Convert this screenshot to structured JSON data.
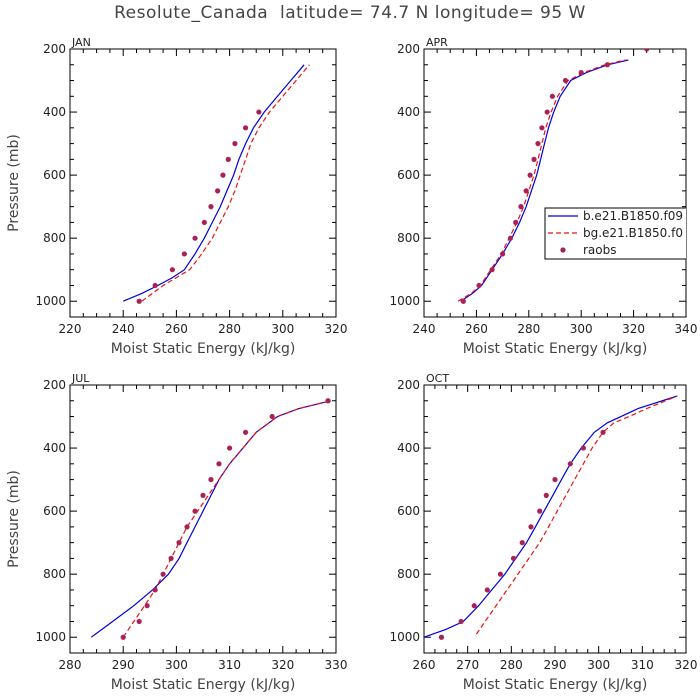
{
  "title": "Resolute_Canada  latitude= 74.7 N longitude= 95 W",
  "legend": {
    "entries": [
      {
        "label": "b.e21.B1850.f09",
        "color": "#0000dd",
        "style": "solid"
      },
      {
        "label": "bg.e21.B1850.f0",
        "color": "#ee1111",
        "style": "dashed"
      },
      {
        "label": "raobs",
        "color": "#aa2255",
        "style": "dots"
      }
    ]
  },
  "colors": {
    "model_b": "#0000dd",
    "model_bg": "#ee1111",
    "raobs": "#aa2255"
  },
  "chart_data": [
    {
      "type": "line",
      "panel_label": "JAN",
      "xlabel": "Moist Static Energy (kJ/kg)",
      "ylabel": "Pressure (mb)",
      "xlim": [
        220,
        320
      ],
      "ylim": [
        1000,
        200
      ],
      "xticks": [
        220,
        240,
        260,
        280,
        300,
        320
      ],
      "yticks": [
        200,
        400,
        600,
        800,
        1000
      ],
      "series": [
        {
          "key": "b",
          "x": [
            240.0,
            247.0,
            253.0,
            258.5,
            263.0,
            267.0,
            270.5,
            273.5,
            276.5,
            279.0,
            281.5,
            283.5,
            286.0,
            289.0,
            293.0,
            298.0,
            303.0,
            308.0
          ],
          "y": [
            1000,
            975,
            950,
            925,
            900,
            850,
            800,
            750,
            700,
            650,
            600,
            550,
            500,
            450,
            400,
            350,
            300,
            250
          ]
        },
        {
          "key": "bg",
          "x": [
            247.0,
            251.0,
            255.0,
            260.0,
            265.0,
            269.5,
            273.5,
            276.5,
            279.5,
            282.0,
            284.0,
            286.0,
            288.0,
            291.0,
            295.0,
            300.0,
            305.0,
            310.0
          ],
          "y": [
            1000,
            975,
            950,
            925,
            900,
            850,
            800,
            750,
            700,
            650,
            600,
            550,
            500,
            450,
            400,
            350,
            300,
            250
          ]
        },
        {
          "key": "raobs",
          "x": [
            246.0,
            252.0,
            258.5,
            263.0,
            267.0,
            270.5,
            273.0,
            275.5,
            277.5,
            279.5,
            282.0,
            286.0,
            291.0
          ],
          "y": [
            1000,
            950,
            900,
            850,
            800,
            750,
            700,
            650,
            600,
            550,
            500,
            450,
            400
          ]
        }
      ]
    },
    {
      "type": "line",
      "panel_label": "APR",
      "xlabel": "Moist Static Energy (kJ/kg)",
      "ylabel": "",
      "xlim": [
        240,
        340
      ],
      "ylim": [
        1000,
        200
      ],
      "xticks": [
        240,
        260,
        280,
        300,
        320,
        340
      ],
      "yticks": [
        200,
        400,
        600,
        800,
        1000
      ],
      "series": [
        {
          "key": "b",
          "x": [
            254.0,
            258.5,
            262.0,
            266.0,
            270.0,
            273.5,
            276.5,
            279.0,
            281.0,
            283.0,
            284.5,
            286.0,
            287.5,
            289.5,
            292.0,
            296.0,
            302.0,
            310.0,
            318.0
          ],
          "y": [
            1000,
            975,
            950,
            900,
            850,
            800,
            750,
            700,
            650,
            600,
            550,
            500,
            450,
            400,
            350,
            300,
            275,
            250,
            235
          ]
        },
        {
          "key": "bg",
          "x": [
            253.0,
            258.0,
            261.5,
            265.5,
            269.5,
            272.5,
            275.5,
            278.0,
            280.0,
            282.0,
            283.5,
            285.0,
            286.5,
            288.5,
            291.0,
            295.0,
            301.0,
            309.0,
            317.0
          ],
          "y": [
            1000,
            975,
            950,
            900,
            850,
            800,
            750,
            700,
            650,
            600,
            550,
            500,
            450,
            400,
            350,
            300,
            275,
            250,
            235
          ]
        },
        {
          "key": "raobs",
          "x": [
            255.0,
            261.0,
            266.0,
            270.0,
            273.0,
            275.0,
            277.0,
            279.0,
            280.5,
            282.0,
            283.5,
            285.0,
            287.0,
            289.0,
            294.0,
            300.0,
            310.0,
            325.0
          ],
          "y": [
            1000,
            950,
            900,
            850,
            800,
            750,
            700,
            650,
            600,
            550,
            500,
            450,
            400,
            350,
            300,
            275,
            250,
            200
          ]
        }
      ]
    },
    {
      "type": "line",
      "panel_label": "JUL",
      "xlabel": "Moist Static Energy (kJ/kg)",
      "ylabel": "Pressure (mb)",
      "xlim": [
        280,
        330
      ],
      "ylim": [
        1000,
        200
      ],
      "xticks": [
        280,
        290,
        300,
        310,
        320,
        330
      ],
      "yticks": [
        200,
        400,
        600,
        800,
        1000
      ],
      "series": [
        {
          "key": "b",
          "x": [
            284.0,
            288.0,
            292.0,
            295.5,
            298.5,
            300.5,
            302.0,
            303.5,
            305.0,
            306.5,
            308.0,
            310.0,
            312.5,
            315.0,
            319.0,
            323.0,
            329.0
          ],
          "y": [
            1000,
            950,
            900,
            850,
            800,
            750,
            700,
            650,
            600,
            550,
            500,
            450,
            400,
            350,
            300,
            275,
            250
          ]
        },
        {
          "key": "bg",
          "x": [
            290.0,
            292.0,
            294.0,
            296.0,
            297.5,
            299.0,
            300.5,
            302.0,
            304.0,
            306.0,
            308.0,
            310.0,
            312.5,
            315.0,
            319.0,
            323.0,
            329.0
          ],
          "y": [
            1000,
            950,
            900,
            850,
            800,
            750,
            700,
            650,
            600,
            550,
            500,
            450,
            400,
            350,
            300,
            275,
            250
          ]
        },
        {
          "key": "raobs",
          "x": [
            290.0,
            293.0,
            294.5,
            296.0,
            297.5,
            299.0,
            300.5,
            302.0,
            303.5,
            305.0,
            306.5,
            308.0,
            310.0,
            313.0,
            318.0,
            328.5
          ],
          "y": [
            1000,
            950,
            900,
            850,
            800,
            750,
            700,
            650,
            600,
            550,
            500,
            450,
            400,
            350,
            300,
            250
          ]
        }
      ]
    },
    {
      "type": "line",
      "panel_label": "OCT",
      "xlabel": "Moist Static Energy (kJ/kg)",
      "ylabel": "",
      "xlim": [
        260,
        320
      ],
      "ylim": [
        1000,
        200
      ],
      "xticks": [
        260,
        270,
        280,
        290,
        300,
        310,
        320
      ],
      "yticks": [
        200,
        400,
        600,
        800,
        1000
      ],
      "series": [
        {
          "key": "b",
          "x": [
            260.0,
            265.0,
            269.0,
            272.5,
            275.5,
            278.5,
            281.0,
            283.5,
            285.5,
            287.5,
            289.5,
            291.5,
            293.5,
            296.0,
            299.0,
            302.0,
            309.0,
            318.0
          ],
          "y": [
            1000,
            975,
            950,
            900,
            850,
            800,
            750,
            700,
            650,
            600,
            550,
            500,
            450,
            400,
            350,
            320,
            275,
            235
          ]
        },
        {
          "key": "bg",
          "x": [
            272.0,
            274.0,
            276.5,
            279.0,
            281.5,
            284.0,
            286.5,
            288.5,
            290.5,
            292.5,
            294.5,
            296.5,
            298.5,
            301.0,
            303.5,
            307.0,
            311.0,
            318.0
          ],
          "y": [
            990,
            950,
            900,
            850,
            800,
            750,
            700,
            650,
            600,
            550,
            500,
            450,
            400,
            350,
            320,
            300,
            275,
            235
          ]
        },
        {
          "key": "raobs",
          "x": [
            264.0,
            268.5,
            271.5,
            274.5,
            277.5,
            280.5,
            282.5,
            284.5,
            286.5,
            288.0,
            290.0,
            293.5,
            296.5,
            301.0
          ],
          "y": [
            1000,
            950,
            900,
            850,
            800,
            750,
            700,
            650,
            600,
            550,
            500,
            450,
            400,
            350
          ]
        }
      ]
    }
  ]
}
